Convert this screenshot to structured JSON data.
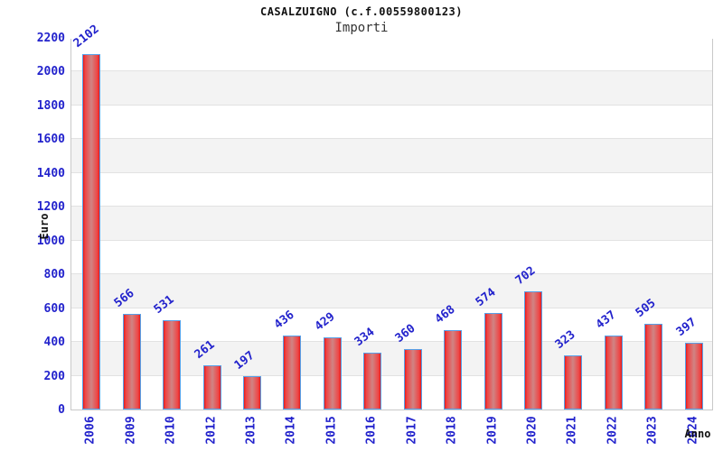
{
  "chart_data": {
    "type": "bar",
    "title": "CASALZUIGNO (c.f.00559800123)",
    "subtitle": "Importi",
    "xlabel": "Anno",
    "ylabel": "Euro",
    "categories": [
      "2006",
      "2009",
      "2010",
      "2012",
      "2013",
      "2014",
      "2015",
      "2016",
      "2017",
      "2018",
      "2019",
      "2020",
      "2021",
      "2022",
      "2023",
      "2024"
    ],
    "values": [
      2102,
      566,
      531,
      261,
      197,
      436,
      429,
      334,
      360,
      468,
      574,
      702,
      323,
      437,
      505,
      397
    ],
    "ylim": [
      0,
      2200
    ],
    "ytick_step": 200,
    "ytick_labels": [
      "0",
      "200",
      "400",
      "600",
      "800",
      "1000",
      "1200",
      "1400",
      "1600",
      "1800",
      "2000",
      "2200"
    ],
    "grid": "alternating horizontal bands every 200 units",
    "legend": "none",
    "bar_value_labels_rotation_deg": -38,
    "xtick_rotation_deg": -90,
    "colors": {
      "bar_edge_red": "#e41a1a",
      "bar_center_pink": "#d08484",
      "bar_border_blue": "#57a0e8",
      "tick_label_blue": "#2222cc",
      "band_gray": "#f3f3f3",
      "band_white": "#ffffff",
      "plot_border": "#c9c9c9",
      "title_black": "#111111",
      "subtitle_gray": "#333333"
    }
  }
}
